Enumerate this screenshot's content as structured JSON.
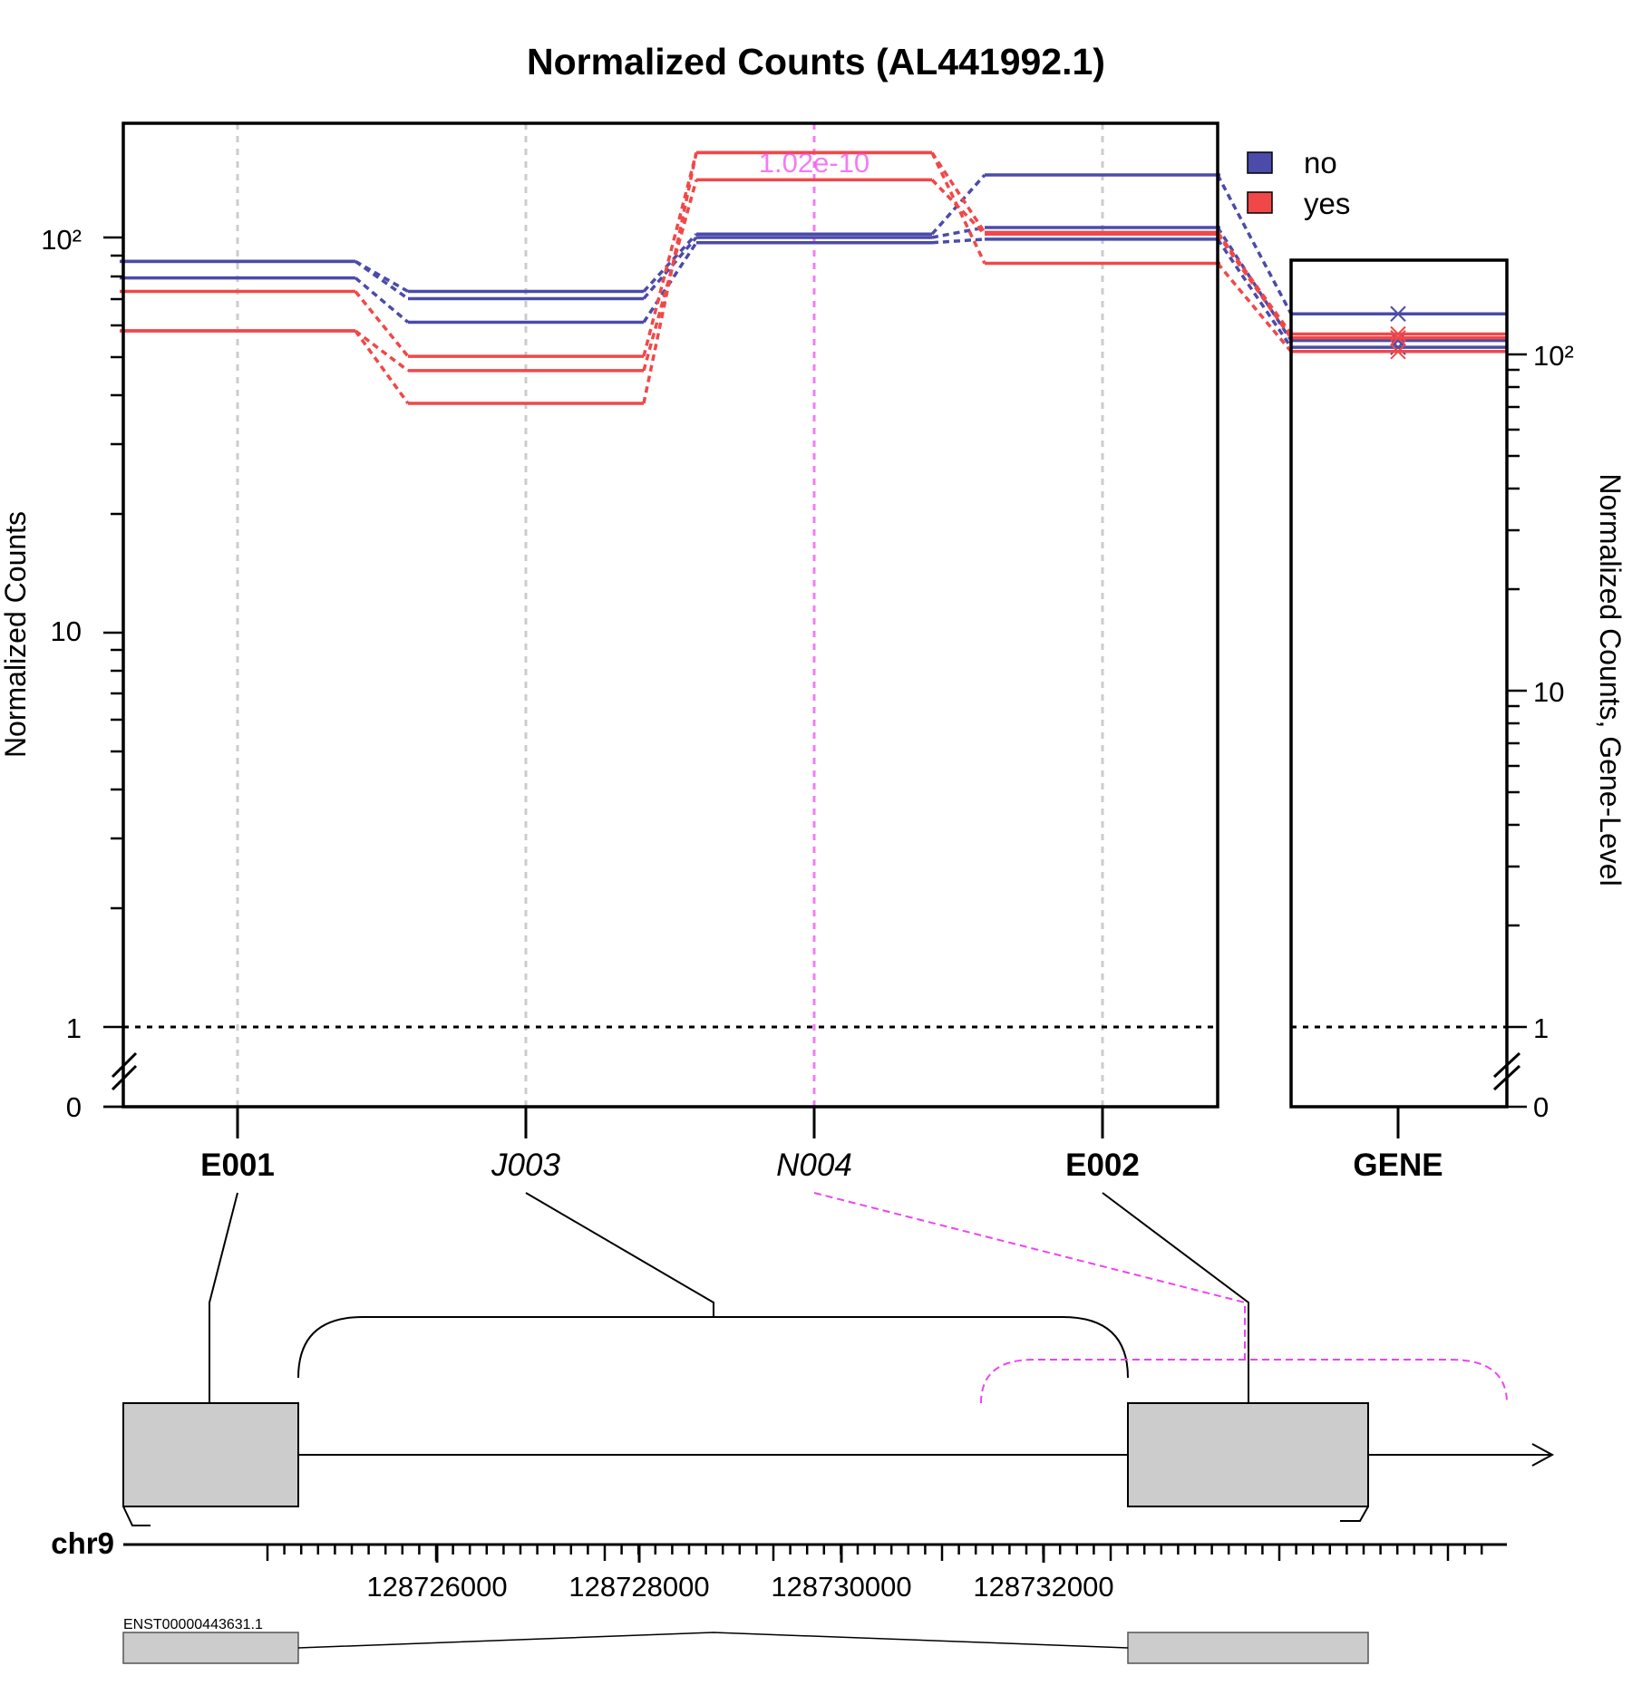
{
  "chart_data": {
    "type": "line",
    "title": "Normalized Counts (AL441992.1)",
    "ylabel": "Normalized Counts",
    "ylabel_right": "Normalized Counts, Gene-Level",
    "y_scale": "log (broken axis, 0 shown below break)",
    "y_ticks_left": [
      "0",
      "1",
      "10",
      "10²"
    ],
    "y_ticks_right": [
      "0",
      "1",
      "10",
      "10²"
    ],
    "features": [
      {
        "id": "E001",
        "style": "bold"
      },
      {
        "id": "J003",
        "style": "italic"
      },
      {
        "id": "N004",
        "style": "italic"
      },
      {
        "id": "E002",
        "style": "bold"
      }
    ],
    "gene_label": "GENE",
    "significance_label": "1.02e-10",
    "significant_feature": "N004",
    "legend": [
      {
        "label": "no",
        "color": "#4B4BAA"
      },
      {
        "label": "yes",
        "color": "#F04848"
      }
    ],
    "legend_position": "top-right",
    "series": [
      {
        "group": "no",
        "values": [
          87,
          73,
          102,
          144
        ],
        "gene": 132
      },
      {
        "group": "no",
        "values": [
          87,
          70,
          100,
          106
        ],
        "gene": 110
      },
      {
        "group": "no",
        "values": [
          79,
          61,
          97,
          99
        ],
        "gene": 105
      },
      {
        "group": "yes",
        "values": [
          73,
          50,
          164,
          103
        ],
        "gene": 115
      },
      {
        "group": "yes",
        "values": [
          58,
          46,
          140,
          102
        ],
        "gene": 112
      },
      {
        "group": "yes",
        "values": [
          58,
          38,
          164,
          86
        ],
        "gene": 102
      }
    ],
    "dividers": [
      0.3939
    ],
    "colors": {
      "no": "#4B4BAA",
      "yes": "#F04848",
      "highlight": "#EE44EE",
      "exon_fill": "#CCCCCC"
    },
    "genomic": {
      "chromosome": "chr9",
      "tick_labels": [
        "128726000",
        "128728000",
        "128730000",
        "128732000"
      ],
      "transcript": "ENST00000443631.1",
      "strand": "+"
    }
  }
}
